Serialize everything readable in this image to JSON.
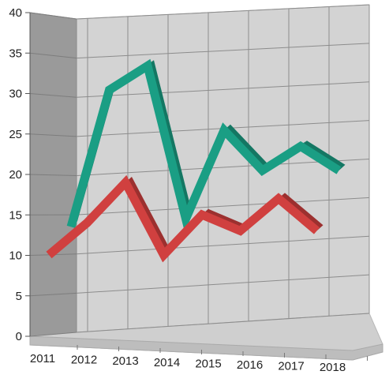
{
  "chart_data": {
    "type": "line",
    "title": "",
    "xlabel": "",
    "ylabel": "",
    "categories": [
      "2011",
      "2012",
      "2013",
      "2014",
      "2015",
      "2016",
      "2017",
      "2018"
    ],
    "ylim": [
      0,
      40
    ],
    "yticks": [
      "0",
      "5",
      "10",
      "15",
      "20",
      "25",
      "30",
      "35",
      "40"
    ],
    "grid": true,
    "view": "3d",
    "series": [
      {
        "values": [
          13,
          30,
          33,
          14,
          25,
          20,
          23,
          20
        ],
        "color": "#1a9e84"
      },
      {
        "values": [
          10,
          14,
          19,
          10,
          15,
          13,
          17,
          13
        ],
        "color": "#d0403f"
      }
    ],
    "colors": {
      "back_wall": "#d3d3d3",
      "side_wall": "#9a9a9a",
      "floor": "#cfcfcf",
      "grid": "#8c8c8c"
    }
  }
}
